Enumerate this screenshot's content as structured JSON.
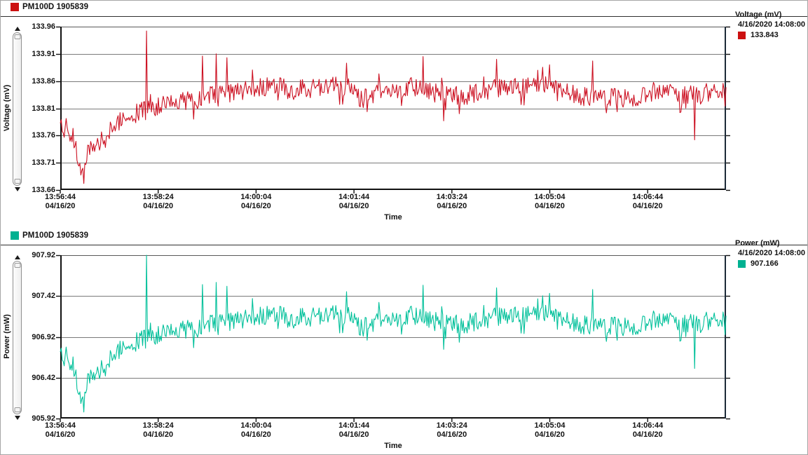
{
  "chart_data": [
    {
      "type": "line",
      "header": {
        "label": "PM100D 1905839"
      },
      "y_axis": {
        "title": "Voltage (mV)",
        "min": 133.66,
        "max": 133.96,
        "ticks": [
          "133.96",
          "133.91",
          "133.86",
          "133.81",
          "133.76",
          "133.71",
          "133.66"
        ]
      },
      "x_axis": {
        "title": "Time",
        "span_seconds": 680,
        "tick_interval_seconds": 100,
        "ticks": [
          {
            "time": "13:56:44",
            "date": "04/16/20"
          },
          {
            "time": "13:58:24",
            "date": "04/16/20"
          },
          {
            "time": "14:00:04",
            "date": "04/16/20"
          },
          {
            "time": "14:01:44",
            "date": "04/16/20"
          },
          {
            "time": "14:03:24",
            "date": "04/16/20"
          },
          {
            "time": "14:05:04",
            "date": "04/16/20"
          },
          {
            "time": "14:06:44",
            "date": "04/16/20"
          }
        ]
      },
      "legend": {
        "title": "Voltage (mV)",
        "timestamp": "4/16/2020 14:08:00",
        "value": "133.843",
        "swatch_color": "#cc1111",
        "position": "right"
      },
      "grid": true,
      "series": {
        "name": "PM100D 1905839 voltage",
        "color": "#cc1122",
        "swatch_color": "#cc1111",
        "points": 680,
        "seed": 97,
        "noise_amplitude": 0.018,
        "trend": [
          [
            0.0,
            133.78
          ],
          [
            0.01,
            133.76
          ],
          [
            0.022,
            133.745
          ],
          [
            0.03,
            133.7
          ],
          [
            0.042,
            133.73
          ],
          [
            0.055,
            133.742
          ],
          [
            0.068,
            133.755
          ],
          [
            0.08,
            133.778
          ],
          [
            0.095,
            133.795
          ],
          [
            0.11,
            133.8
          ],
          [
            0.13,
            133.805
          ],
          [
            0.15,
            133.818
          ],
          [
            0.175,
            133.825
          ],
          [
            0.2,
            133.82
          ],
          [
            0.23,
            133.835
          ],
          [
            0.26,
            133.84
          ],
          [
            0.29,
            133.848
          ],
          [
            0.32,
            133.852
          ],
          [
            0.35,
            133.842
          ],
          [
            0.38,
            133.848
          ],
          [
            0.41,
            133.852
          ],
          [
            0.435,
            133.84
          ],
          [
            0.455,
            133.828
          ],
          [
            0.48,
            133.842
          ],
          [
            0.51,
            133.848
          ],
          [
            0.54,
            133.85
          ],
          [
            0.565,
            133.838
          ],
          [
            0.59,
            133.83
          ],
          [
            0.615,
            133.835
          ],
          [
            0.64,
            133.842
          ],
          [
            0.665,
            133.85
          ],
          [
            0.69,
            133.848
          ],
          [
            0.715,
            133.855
          ],
          [
            0.74,
            133.852
          ],
          [
            0.76,
            133.842
          ],
          [
            0.785,
            133.832
          ],
          [
            0.81,
            133.828
          ],
          [
            0.835,
            133.83
          ],
          [
            0.86,
            133.828
          ],
          [
            0.885,
            133.835
          ],
          [
            0.91,
            133.84
          ],
          [
            0.935,
            133.832
          ],
          [
            0.96,
            133.836
          ],
          [
            0.98,
            133.84
          ],
          [
            1.0,
            133.845
          ]
        ],
        "spikes": [
          [
            0.035,
            133.672
          ],
          [
            0.13,
            133.952
          ],
          [
            0.2,
            133.79
          ],
          [
            0.214,
            133.906
          ],
          [
            0.234,
            133.91
          ],
          [
            0.25,
            133.903
          ],
          [
            0.43,
            133.893
          ],
          [
            0.545,
            133.905
          ],
          [
            0.576,
            133.787
          ],
          [
            0.655,
            133.9
          ],
          [
            0.735,
            133.89
          ],
          [
            0.8,
            133.897
          ],
          [
            0.953,
            133.752
          ]
        ]
      }
    },
    {
      "type": "line",
      "header": {
        "label": "PM100D 1905839"
      },
      "y_axis": {
        "title": "Power (mW)",
        "min": 905.92,
        "max": 907.92,
        "ticks": [
          "907.92",
          "907.42",
          "906.92",
          "906.42",
          "905.92"
        ]
      },
      "x_axis": {
        "title": "Time",
        "span_seconds": 680,
        "tick_interval_seconds": 100,
        "ticks": [
          {
            "time": "13:56:44",
            "date": "04/16/20"
          },
          {
            "time": "13:58:24",
            "date": "04/16/20"
          },
          {
            "time": "14:00:04",
            "date": "04/16/20"
          },
          {
            "time": "14:01:44",
            "date": "04/16/20"
          },
          {
            "time": "14:03:24",
            "date": "04/16/20"
          },
          {
            "time": "14:05:04",
            "date": "04/16/20"
          },
          {
            "time": "14:06:44",
            "date": "04/16/20"
          }
        ]
      },
      "legend": {
        "title": "Power (mW)",
        "timestamp": "4/16/2020 14:08:00",
        "value": "907.166",
        "swatch_color": "#00b191",
        "position": "right"
      },
      "grid": true,
      "series": {
        "name": "PM100D 1905839 power",
        "color": "#00c09a",
        "swatch_color": "#00b191",
        "points": 680,
        "seed": 97,
        "noise_amplitude": 0.12,
        "trend": [
          [
            0.0,
            906.72
          ],
          [
            0.01,
            906.587
          ],
          [
            0.022,
            906.487
          ],
          [
            0.03,
            906.187
          ],
          [
            0.042,
            906.387
          ],
          [
            0.055,
            906.467
          ],
          [
            0.068,
            906.553
          ],
          [
            0.08,
            906.707
          ],
          [
            0.095,
            906.82
          ],
          [
            0.11,
            906.853
          ],
          [
            0.13,
            906.887
          ],
          [
            0.15,
            906.973
          ],
          [
            0.175,
            907.02
          ],
          [
            0.2,
            906.987
          ],
          [
            0.23,
            907.087
          ],
          [
            0.26,
            907.12
          ],
          [
            0.29,
            907.173
          ],
          [
            0.32,
            907.2
          ],
          [
            0.35,
            907.133
          ],
          [
            0.38,
            907.173
          ],
          [
            0.41,
            907.2
          ],
          [
            0.435,
            907.12
          ],
          [
            0.455,
            907.04
          ],
          [
            0.48,
            907.133
          ],
          [
            0.51,
            907.173
          ],
          [
            0.54,
            907.187
          ],
          [
            0.565,
            907.107
          ],
          [
            0.59,
            907.053
          ],
          [
            0.615,
            907.087
          ],
          [
            0.64,
            907.133
          ],
          [
            0.665,
            907.187
          ],
          [
            0.69,
            907.173
          ],
          [
            0.715,
            907.22
          ],
          [
            0.74,
            907.2
          ],
          [
            0.76,
            907.133
          ],
          [
            0.785,
            907.067
          ],
          [
            0.81,
            907.04
          ],
          [
            0.835,
            907.053
          ],
          [
            0.86,
            907.04
          ],
          [
            0.885,
            907.087
          ],
          [
            0.91,
            907.12
          ],
          [
            0.935,
            907.067
          ],
          [
            0.96,
            907.093
          ],
          [
            0.98,
            907.12
          ],
          [
            1.0,
            907.153
          ]
        ],
        "spikes": [
          [
            0.035,
            906.0
          ],
          [
            0.13,
            907.92
          ],
          [
            0.2,
            906.787
          ],
          [
            0.214,
            907.56
          ],
          [
            0.234,
            907.587
          ],
          [
            0.25,
            907.54
          ],
          [
            0.43,
            907.473
          ],
          [
            0.545,
            907.553
          ],
          [
            0.576,
            906.767
          ],
          [
            0.655,
            907.52
          ],
          [
            0.735,
            907.453
          ],
          [
            0.8,
            907.5
          ],
          [
            0.953,
            906.533
          ]
        ]
      }
    }
  ]
}
